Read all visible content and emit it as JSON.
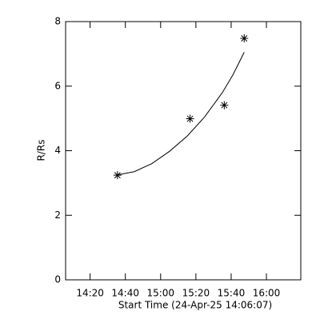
{
  "chart_data": {
    "type": "scatter",
    "xlabel": "Start Time (24-Apr-25 14:06:07)",
    "ylabel": "R/Rs",
    "xlim": [
      6.1,
      139.5
    ],
    "ylim": [
      0,
      8
    ],
    "xticks": [
      {
        "value": 20,
        "label": "14:20"
      },
      {
        "value": 40,
        "label": "14:40"
      },
      {
        "value": 60,
        "label": "15:00"
      },
      {
        "value": 80,
        "label": "15:20"
      },
      {
        "value": 100,
        "label": "15:40"
      },
      {
        "value": 120,
        "label": "16:00"
      }
    ],
    "yticks": [
      0,
      2,
      4,
      6,
      8
    ],
    "color": "#000000",
    "series": [
      {
        "x": [
          35.5,
          76.7,
          96.1,
          107.4
        ],
        "values": [
          3.24,
          4.99,
          5.41,
          7.48
        ]
      }
    ],
    "fit": {
      "x": [
        35.5,
        45,
        55,
        65,
        75,
        85,
        95,
        101,
        107.4
      ],
      "values": [
        3.25,
        3.35,
        3.6,
        3.98,
        4.45,
        5.05,
        5.8,
        6.35,
        7.05
      ]
    }
  }
}
